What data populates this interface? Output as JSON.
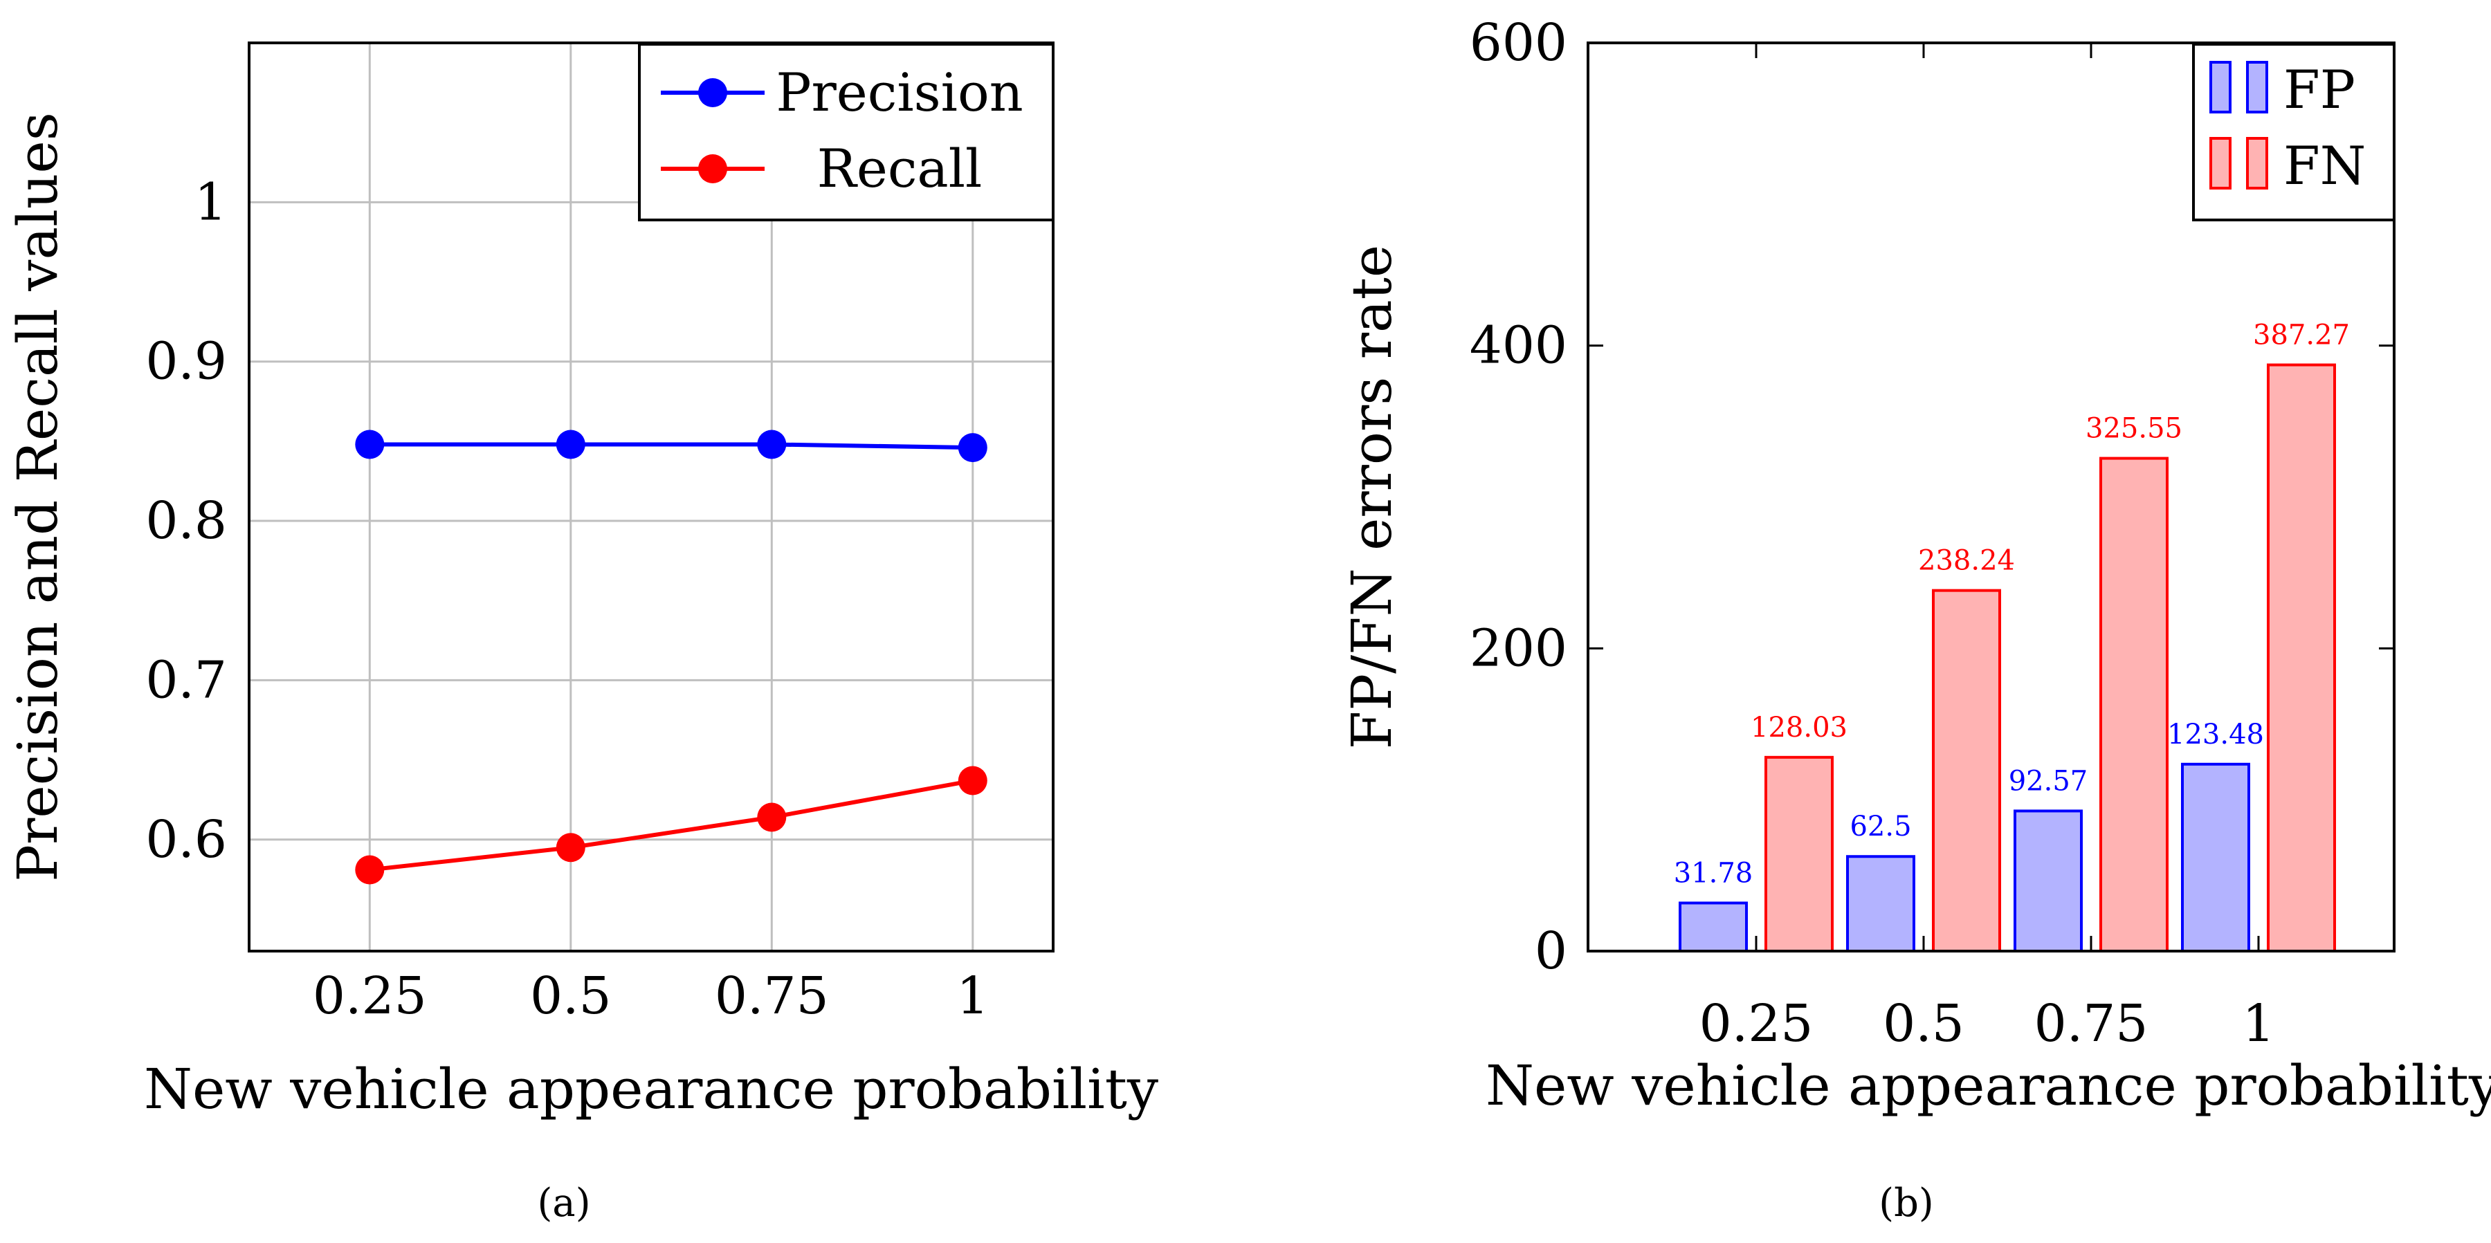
{
  "chart_data": [
    {
      "type": "line",
      "caption": "(a)",
      "xlabel": "New vehicle appearance probability",
      "ylabel": "Precision and Recall values",
      "x": [
        0.25,
        0.5,
        0.75,
        1
      ],
      "xtick_labels": [
        "0.25",
        "0.5",
        "0.75",
        "1"
      ],
      "yticks": [
        0.6,
        0.7,
        0.8,
        0.9,
        1
      ],
      "ytick_labels": [
        "0.6",
        "0.7",
        "0.8",
        "0.9",
        "1"
      ],
      "xlim": [
        0.1,
        1.1
      ],
      "ylim": [
        0.53,
        1.1
      ],
      "grid": true,
      "legend_position": "top-right",
      "series": [
        {
          "name": "Precision",
          "color": "#0000ff",
          "values": [
            0.848,
            0.848,
            0.848,
            0.846
          ]
        },
        {
          "name": "Recall",
          "color": "#ff0000",
          "values": [
            0.581,
            0.595,
            0.614,
            0.637
          ]
        }
      ]
    },
    {
      "type": "bar",
      "caption": "(b)",
      "xlabel": "New vehicle appearance probability",
      "ylabel": "FP/FN errors rate",
      "categories": [
        "0.25",
        "0.5",
        "0.75",
        "1"
      ],
      "yticks": [
        0,
        200,
        400,
        600
      ],
      "ytick_labels": [
        "0",
        "200",
        "400",
        "600"
      ],
      "ylim": [
        0,
        600
      ],
      "grid": false,
      "legend_position": "top-right",
      "series": [
        {
          "name": "FP",
          "color": "#0000ff",
          "fill": "#b3b3ff",
          "values": [
            31.78,
            62.5,
            92.57,
            123.48
          ],
          "labels": [
            "31.78",
            "62.5",
            "92.57",
            "123.48"
          ]
        },
        {
          "name": "FN",
          "color": "#ff0000",
          "fill": "#ffb3b3",
          "values": [
            128.03,
            238.24,
            325.55,
            387.27
          ],
          "labels": [
            "128.03",
            "238.24",
            "325.55",
            "387.27"
          ]
        }
      ]
    }
  ]
}
